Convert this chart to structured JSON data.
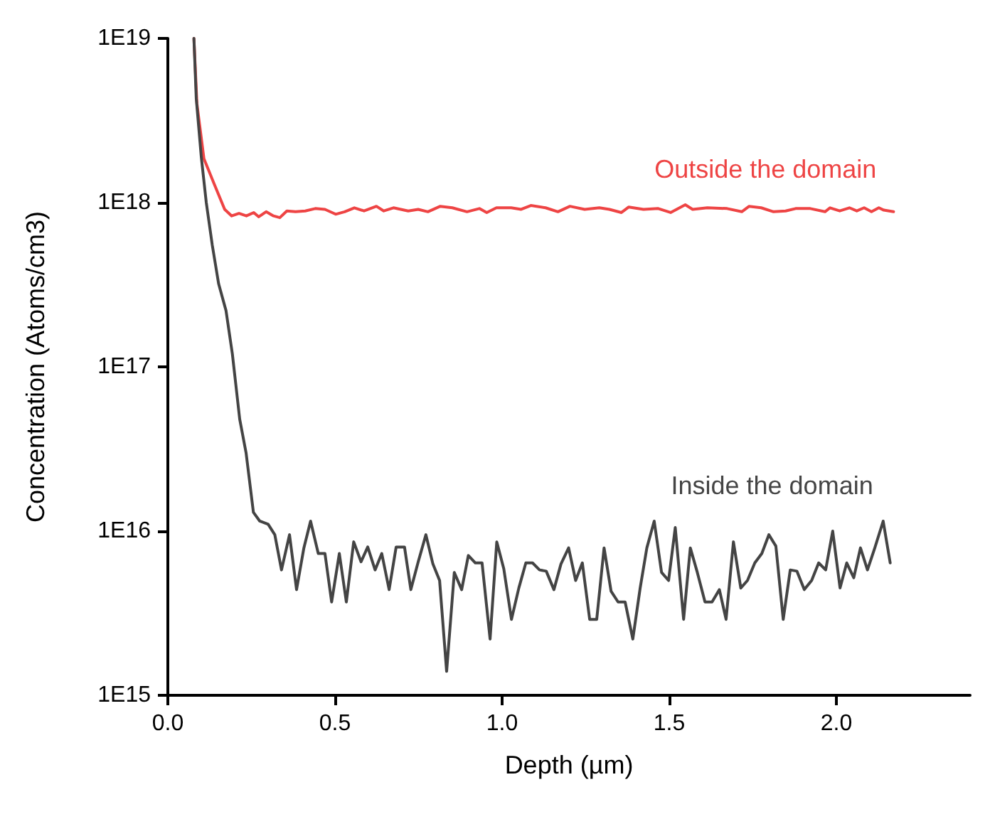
{
  "chart_data": {
    "type": "line",
    "xlabel": "Depth (µm)",
    "ylabel": "Concentration (Atoms/cm3)",
    "log": "y",
    "grid": false,
    "legend": false,
    "marker": "none",
    "line_style": "solid",
    "xlim": [
      0,
      2.4
    ],
    "xticks": [
      {
        "value": 0,
        "label": "0.0"
      },
      {
        "value": 0.5,
        "label": "0.5"
      },
      {
        "value": 1,
        "label": "1.0"
      },
      {
        "value": 1.5,
        "label": "1.5"
      },
      {
        "value": 2,
        "label": "2.0"
      }
    ],
    "ylim": [
      1000000000000000.0,
      1e+19
    ],
    "yticks": [
      {
        "value": 1000000000000000.0,
        "label": "1E15"
      },
      {
        "value": 1e+16,
        "label": "1E16"
      },
      {
        "value": 1e+17,
        "label": "1E17"
      },
      {
        "value": 1e+18,
        "label": "1E18"
      },
      {
        "value": 1e+19,
        "label": "1E19"
      }
    ],
    "series": [
      {
        "name": "Outside the domain",
        "color": "#ee4444",
        "x": [
          0.078,
          0.087,
          0.108,
          0.136,
          0.17,
          0.191,
          0.213,
          0.235,
          0.257,
          0.272,
          0.294,
          0.316,
          0.335,
          0.356,
          0.382,
          0.411,
          0.441,
          0.47,
          0.502,
          0.529,
          0.558,
          0.587,
          0.624,
          0.646,
          0.675,
          0.719,
          0.749,
          0.778,
          0.815,
          0.851,
          0.895,
          0.932,
          0.954,
          0.983,
          1.027,
          1.057,
          1.086,
          1.13,
          1.167,
          1.203,
          1.247,
          1.291,
          1.321,
          1.357,
          1.379,
          1.423,
          1.467,
          1.504,
          1.548,
          1.57,
          1.614,
          1.673,
          1.717,
          1.739,
          1.775,
          1.812,
          1.848,
          1.878,
          1.922,
          1.966,
          1.981,
          2.01,
          2.039,
          2.061,
          2.083,
          2.105,
          2.127,
          2.142,
          2.171
        ],
        "values": [
          1e+19,
          4e+18,
          1.85e+18,
          1.34e+18,
          9.1e+17,
          8.3e+17,
          8.6e+17,
          8.3e+17,
          8.7e+17,
          8.2e+17,
          8.8e+17,
          8.3e+17,
          8.1e+17,
          8.9e+17,
          8.8e+17,
          8.9e+17,
          9.2e+17,
          9.1e+17,
          8.5e+17,
          8.8e+17,
          9.3e+17,
          8.9e+17,
          9.5e+17,
          8.9e+17,
          9.3e+17,
          8.9e+17,
          9.1e+17,
          8.8e+17,
          9.5e+17,
          9.3e+17,
          8.8e+17,
          9.2e+17,
          8.7e+17,
          9.3e+17,
          9.3e+17,
          9.1e+17,
          9.6e+17,
          9.3e+17,
          8.8e+17,
          9.5e+17,
          9.1e+17,
          9.3e+17,
          9.1e+17,
          8.7e+17,
          9.4e+17,
          9.1e+17,
          9.2e+17,
          8.7e+17,
          9.7e+17,
          9.1e+17,
          9.3e+17,
          9.2e+17,
          8.8e+17,
          9.5e+17,
          9.3e+17,
          8.8e+17,
          8.9e+17,
          9.2e+17,
          9.2e+17,
          8.8e+17,
          9.3e+17,
          8.9e+17,
          9.3e+17,
          8.9e+17,
          9.3e+17,
          8.8e+17,
          9.3e+17,
          9e+17,
          8.8e+17
        ]
      },
      {
        "name": "Inside the domain",
        "color": "#444444",
        "x": [
          0.078,
          0.085,
          0.1,
          0.115,
          0.133,
          0.152,
          0.174,
          0.193,
          0.215,
          0.234,
          0.256,
          0.275,
          0.3,
          0.32,
          0.34,
          0.364,
          0.385,
          0.407,
          0.427,
          0.45,
          0.47,
          0.49,
          0.513,
          0.534,
          0.556,
          0.578,
          0.598,
          0.62,
          0.64,
          0.662,
          0.683,
          0.708,
          0.727,
          0.749,
          0.772,
          0.793,
          0.813,
          0.834,
          0.857,
          0.879,
          0.899,
          0.92,
          0.94,
          0.964,
          0.984,
          1.005,
          1.028,
          1.05,
          1.071,
          1.091,
          1.112,
          1.132,
          1.155,
          1.176,
          1.199,
          1.22,
          1.24,
          1.262,
          1.283,
          1.305,
          1.326,
          1.347,
          1.368,
          1.391,
          1.413,
          1.433,
          1.455,
          1.477,
          1.498,
          1.518,
          1.543,
          1.563,
          1.584,
          1.607,
          1.628,
          1.65,
          1.67,
          1.692,
          1.714,
          1.734,
          1.756,
          1.777,
          1.798,
          1.819,
          1.841,
          1.862,
          1.882,
          1.904,
          1.926,
          1.947,
          1.968,
          1.989,
          2.011,
          2.031,
          2.052,
          2.072,
          2.093,
          2.115,
          2.14,
          2.161
        ],
        "values": [
          1e+19,
          4.3e+18,
          1.9e+18,
          1e+18,
          5.5e+17,
          3.2e+17,
          2.2e+17,
          1.2e+17,
          4.8e+16,
          3e+16,
          1.3e+16,
          1.15e+16,
          1.1e+16,
          9500000000000000.0,
          5800000000000000.0,
          9500000000000000.0,
          4400000000000000.0,
          7900000000000000.0,
          1.15e+16,
          7300000000000000.0,
          7300000000000000.0,
          3700000000000000.0,
          7300000000000000.0,
          3700000000000000.0,
          8600000000000000.0,
          6500000000000000.0,
          8000000000000000.0,
          5800000000000000.0,
          7300000000000000.0,
          4400000000000000.0,
          8000000000000000.0,
          8000000000000000.0,
          4400000000000000.0,
          6500000000000000.0,
          9500000000000000.0,
          6300000000000000.0,
          5000000000000000.0,
          1400000000000000.0,
          5600000000000000.0,
          4400000000000000.0,
          7100000000000000.0,
          6400000000000000.0,
          6400000000000000.0,
          2200000000000000.0,
          8600000000000000.0,
          5900000000000000.0,
          2900000000000000.0,
          4500000000000000.0,
          6400000000000000.0,
          6400000000000000.0,
          5800000000000000.0,
          5700000000000000.0,
          4400000000000000.0,
          6300000000000000.0,
          7900000000000000.0,
          5000000000000000.0,
          6400000000000000.0,
          2900000000000000.0,
          2900000000000000.0,
          7900000000000000.0,
          4300000000000000.0,
          3700000000000000.0,
          3700000000000000.0,
          2200000000000000.0,
          4500000000000000.0,
          7900000000000000.0,
          1.15e+16,
          5600000000000000.0,
          5000000000000000.0,
          1.05e+16,
          2900000000000000.0,
          7900000000000000.0,
          5600000000000000.0,
          3700000000000000.0,
          3700000000000000.0,
          4400000000000000.0,
          2900000000000000.0,
          8600000000000000.0,
          4500000000000000.0,
          5000000000000000.0,
          6400000000000000.0,
          7300000000000000.0,
          9500000000000000.0,
          8100000000000000.0,
          2900000000000000.0,
          5800000000000000.0,
          5700000000000000.0,
          4400000000000000.0,
          5000000000000000.0,
          6400000000000000.0,
          5800000000000000.0,
          1e+16,
          4500000000000000.0,
          6400000000000000.0,
          5200000000000000.0,
          7900000000000000.0,
          5800000000000000.0,
          7900000000000000.0,
          1.15e+16,
          6400000000000000.0
        ]
      }
    ]
  }
}
